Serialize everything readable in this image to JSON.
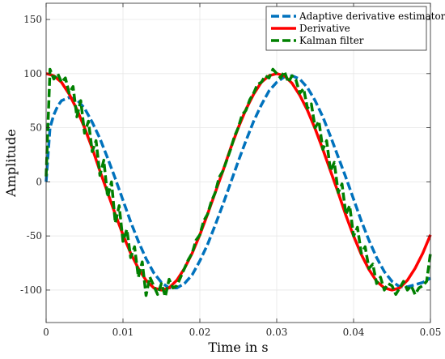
{
  "chart_data": {
    "type": "line",
    "title": "",
    "xlabel": "Time in s",
    "ylabel": "Amplitude",
    "xlim": [
      0,
      0.05
    ],
    "ylim": [
      -130,
      165
    ],
    "xticks": [
      0,
      0.01,
      0.02,
      0.03,
      0.04,
      0.05
    ],
    "xtick_labels": [
      "0",
      "0.01",
      "0.02",
      "0.03",
      "0.04",
      "0.05"
    ],
    "yticks": [
      -100,
      -50,
      0,
      50,
      100,
      150
    ],
    "ytick_labels": [
      "-100",
      "-50",
      "0",
      "50",
      "100",
      "150"
    ],
    "grid": true,
    "legend_position": "top-right",
    "series": [
      {
        "name": "Adaptive derivative estimator",
        "color": "#0072BD",
        "style": "dashed",
        "x": [
          0,
          0.0005,
          0.001,
          0.0015,
          0.002,
          0.003,
          0.004,
          0.005,
          0.006,
          0.007,
          0.008,
          0.009,
          0.01,
          0.011,
          0.012,
          0.013,
          0.014,
          0.015,
          0.016,
          0.017,
          0.018,
          0.019,
          0.02,
          0.021,
          0.022,
          0.023,
          0.024,
          0.025,
          0.026,
          0.027,
          0.028,
          0.029,
          0.03,
          0.031,
          0.032,
          0.033,
          0.034,
          0.035,
          0.036,
          0.037,
          0.038,
          0.039,
          0.04,
          0.041,
          0.042,
          0.043,
          0.044,
          0.045,
          0.046,
          0.047,
          0.048,
          0.049,
          0.05
        ],
        "y": [
          0,
          50,
          62,
          70,
          75,
          78,
          76,
          68,
          55,
          40,
          22,
          3,
          -17,
          -37,
          -55,
          -71,
          -84,
          -93,
          -98,
          -98,
          -94,
          -86,
          -73,
          -58,
          -40,
          -21,
          -1,
          19,
          38,
          56,
          71,
          84,
          92,
          97,
          98,
          95,
          87,
          75,
          60,
          42,
          23,
          4,
          -16,
          -36,
          -54,
          -70,
          -83,
          -92,
          -97,
          -97,
          -95,
          -93,
          -89
        ]
      },
      {
        "name": "Derivative",
        "color": "#FF0000",
        "style": "solid",
        "x": [
          0,
          0.0005,
          0.001,
          0.002,
          0.003,
          0.004,
          0.005,
          0.006,
          0.007,
          0.008,
          0.009,
          0.01,
          0.011,
          0.012,
          0.013,
          0.014,
          0.015,
          0.016,
          0.017,
          0.018,
          0.019,
          0.02,
          0.021,
          0.022,
          0.023,
          0.024,
          0.025,
          0.026,
          0.027,
          0.028,
          0.029,
          0.03,
          0.031,
          0.032,
          0.033,
          0.034,
          0.035,
          0.036,
          0.037,
          0.038,
          0.039,
          0.04,
          0.041,
          0.042,
          0.043,
          0.044,
          0.045,
          0.046,
          0.047,
          0.048,
          0.049,
          0.05
        ],
        "y": [
          100,
          99,
          98,
          92,
          81,
          67,
          50,
          31,
          10,
          -10,
          -30,
          -49,
          -66,
          -80,
          -91,
          -98,
          -100,
          -98,
          -91,
          -80,
          -66,
          -49,
          -30,
          -10,
          10,
          31,
          50,
          67,
          81,
          92,
          98,
          100,
          98,
          91,
          80,
          66,
          49,
          30,
          10,
          -10,
          -31,
          -50,
          -67,
          -81,
          -92,
          -98,
          -100,
          -98,
          -91,
          -80,
          -66,
          -49
        ]
      },
      {
        "name": "Kalman filter",
        "color": "#008000",
        "style": "dashed",
        "x": [
          0,
          0.0005,
          0.001,
          0.0015,
          0.002,
          0.0025,
          0.003,
          0.0035,
          0.004,
          0.0045,
          0.005,
          0.0055,
          0.006,
          0.0065,
          0.007,
          0.0075,
          0.008,
          0.0085,
          0.009,
          0.0095,
          0.01,
          0.0105,
          0.011,
          0.0115,
          0.012,
          0.0125,
          0.013,
          0.0135,
          0.014,
          0.0145,
          0.015,
          0.0155,
          0.016,
          0.0165,
          0.017,
          0.0175,
          0.018,
          0.0185,
          0.019,
          0.0195,
          0.02,
          0.0205,
          0.021,
          0.0215,
          0.022,
          0.0225,
          0.023,
          0.0235,
          0.024,
          0.0245,
          0.025,
          0.0255,
          0.026,
          0.0265,
          0.027,
          0.0275,
          0.028,
          0.0285,
          0.029,
          0.0295,
          0.03,
          0.0305,
          0.031,
          0.0315,
          0.032,
          0.0325,
          0.033,
          0.0335,
          0.034,
          0.0345,
          0.035,
          0.0355,
          0.036,
          0.0365,
          0.037,
          0.0375,
          0.038,
          0.0385,
          0.039,
          0.0395,
          0.04,
          0.0405,
          0.041,
          0.0415,
          0.042,
          0.0425,
          0.043,
          0.0435,
          0.044,
          0.0445,
          0.045,
          0.0455,
          0.046,
          0.0465,
          0.047,
          0.0475,
          0.048,
          0.0485,
          0.049,
          0.0495,
          0.05
        ],
        "y": [
          5,
          104,
          95,
          100,
          92,
          96,
          82,
          88,
          60,
          75,
          45,
          56,
          28,
          38,
          6,
          20,
          -14,
          0,
          -38,
          -22,
          -55,
          -44,
          -70,
          -60,
          -88,
          -74,
          -105,
          -88,
          -96,
          -104,
          -94,
          -106,
          -90,
          -98,
          -96,
          -88,
          -80,
          -72,
          -66,
          -54,
          -49,
          -36,
          -30,
          -18,
          -10,
          4,
          10,
          20,
          30,
          42,
          50,
          62,
          66,
          76,
          82,
          90,
          92,
          98,
          96,
          104,
          100,
          96,
          102,
          92,
          98,
          94,
          82,
          86,
          68,
          72,
          50,
          56,
          30,
          38,
          10,
          18,
          -10,
          -2,
          -30,
          -22,
          -50,
          -42,
          -66,
          -60,
          -80,
          -76,
          -94,
          -88,
          -100,
          -94,
          -96,
          -104,
          -98,
          -92,
          -100,
          -96,
          -104,
          -98,
          -96,
          -92,
          -66
        ]
      }
    ]
  }
}
